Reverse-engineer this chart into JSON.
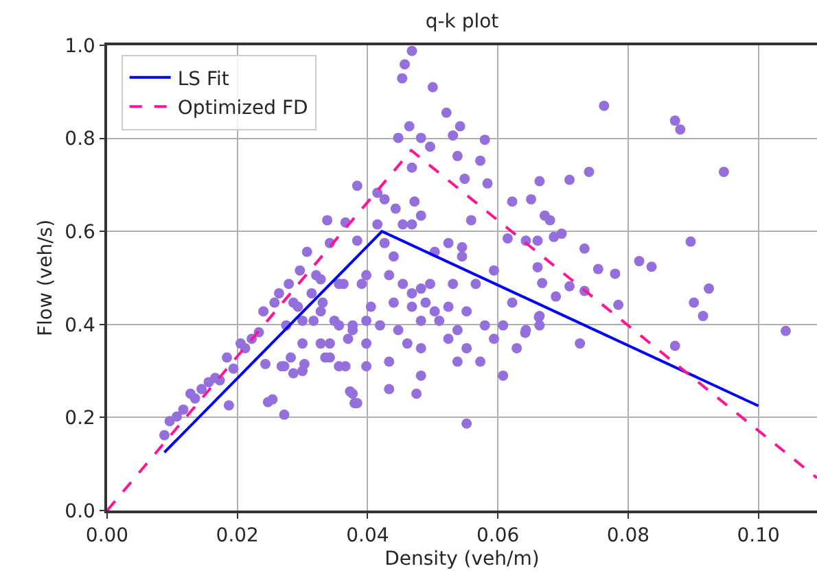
{
  "chart_data": {
    "type": "scatter",
    "title": "q-k plot",
    "xlabel": "Density (veh/m)",
    "ylabel": "Flow (veh/s)",
    "xlim": [
      0,
      0.109
    ],
    "ylim": [
      0,
      1
    ],
    "xticks": [
      {
        "value": 0,
        "label": "0.00"
      },
      {
        "value": 0.02,
        "label": "0.02"
      },
      {
        "value": 0.04,
        "label": "0.04"
      },
      {
        "value": 0.06,
        "label": "0.06"
      },
      {
        "value": 0.08,
        "label": "0.08"
      },
      {
        "value": 0.1,
        "label": "0.10"
      }
    ],
    "yticks": [
      {
        "value": 0,
        "label": "0.0"
      },
      {
        "value": 0.2,
        "label": "0.2"
      },
      {
        "value": 0.4,
        "label": "0.4"
      },
      {
        "value": 0.6,
        "label": "0.6"
      },
      {
        "value": 0.8,
        "label": "0.8"
      },
      {
        "value": 1,
        "label": "1.0"
      }
    ],
    "grid": true,
    "legend": "top left",
    "series": [
      {
        "marker": "circle",
        "color": "#9370db",
        "x": [
          0.0088,
          0.0096,
          0.0107,
          0.0117,
          0.0128,
          0.0135,
          0.0145,
          0.0156,
          0.0166,
          0.0173,
          0.0184,
          0.0187,
          0.0194,
          0.0205,
          0.0212,
          0.0222,
          0.0233,
          0.024,
          0.0243,
          0.0247,
          0.0254,
          0.0257,
          0.0264,
          0.0268,
          0.0272,
          0.0275,
          0.0279,
          0.0282,
          0.0286,
          0.0293,
          0.0296,
          0.03,
          0.0303,
          0.0307,
          0.0314,
          0.0317,
          0.0321,
          0.0328,
          0.0331,
          0.0338,
          0.0342,
          0.0349,
          0.0356,
          0.0366,
          0.0366,
          0.0373,
          0.0377,
          0.038,
          0.0384,
          0.0384,
          0.0391,
          0.0398,
          0.0468,
          0.0457,
          0.0453,
          0.05,
          0.0521,
          0.0542,
          0.0464,
          0.0447,
          0.0482,
          0.0496,
          0.0531,
          0.058,
          0.0538,
          0.0573,
          0.0468,
          0.0549,
          0.0584,
          0.0664,
          0.0415,
          0.0426,
          0.0443,
          0.0472,
          0.0482,
          0.0415,
          0.0454,
          0.0468,
          0.0559,
          0.0524,
          0.0545,
          0.0622,
          0.0651,
          0.0672,
          0.0615,
          0.0643,
          0.0661,
          0.0342,
          0.0426,
          0.044,
          0.0503,
          0.0545,
          0.0594,
          0.0328,
          0.0363,
          0.0398,
          0.0433,
          0.0454,
          0.0468,
          0.0482,
          0.0496,
          0.0531,
          0.0566,
          0.0405,
          0.044,
          0.0468,
          0.0489,
          0.0503,
          0.0524,
          0.0552,
          0.0622,
          0.0664,
          0.0286,
          0.03,
          0.0328,
          0.0356,
          0.0377,
          0.0419,
          0.0447,
          0.0482,
          0.051,
          0.0538,
          0.058,
          0.0608,
          0.0643,
          0.0342,
          0.037,
          0.0398,
          0.0461,
          0.0482,
          0.0524,
          0.0552,
          0.0594,
          0.0629,
          0.0272,
          0.03,
          0.0335,
          0.0356,
          0.0398,
          0.0433,
          0.0482,
          0.0538,
          0.0573,
          0.0608,
          0.0377,
          0.0384,
          0.0433,
          0.0552,
          0.0475,
          0.0763,
          0.0872,
          0.088,
          0.0947,
          0.071,
          0.074,
          0.068,
          0.0686,
          0.0698,
          0.0733,
          0.0896,
          0.0661,
          0.0668,
          0.0689,
          0.071,
          0.0733,
          0.0754,
          0.078,
          0.0817,
          0.0836,
          0.0785,
          0.0901,
          0.0924,
          0.0915,
          0.0642,
          0.0663,
          0.0664,
          0.0726,
          0.0872,
          0.1042
        ],
        "values": [
          0.162,
          0.192,
          0.202,
          0.217,
          0.251,
          0.241,
          0.261,
          0.276,
          0.285,
          0.28,
          0.329,
          0.226,
          0.305,
          0.359,
          0.349,
          0.369,
          0.383,
          0.428,
          0.315,
          0.233,
          0.239,
          0.447,
          0.467,
          0.31,
          0.206,
          0.398,
          0.487,
          0.329,
          0.295,
          0.438,
          0.516,
          0.359,
          0.315,
          0.556,
          0.467,
          0.408,
          0.506,
          0.359,
          0.447,
          0.624,
          0.329,
          0.408,
          0.487,
          0.619,
          0.31,
          0.256,
          0.388,
          0.231,
          0.698,
          0.58,
          0.487,
          0.408,
          0.988,
          0.959,
          0.929,
          0.91,
          0.855,
          0.826,
          0.826,
          0.801,
          0.801,
          0.782,
          0.806,
          0.797,
          0.762,
          0.752,
          0.737,
          0.713,
          0.703,
          0.708,
          0.683,
          0.669,
          0.649,
          0.664,
          0.634,
          0.615,
          0.615,
          0.615,
          0.624,
          0.575,
          0.566,
          0.664,
          0.669,
          0.634,
          0.585,
          0.58,
          0.58,
          0.575,
          0.575,
          0.546,
          0.556,
          0.546,
          0.516,
          0.497,
          0.487,
          0.506,
          0.506,
          0.487,
          0.467,
          0.477,
          0.487,
          0.487,
          0.487,
          0.438,
          0.447,
          0.438,
          0.447,
          0.428,
          0.438,
          0.428,
          0.447,
          0.418,
          0.447,
          0.408,
          0.428,
          0.398,
          0.398,
          0.398,
          0.388,
          0.408,
          0.408,
          0.388,
          0.398,
          0.398,
          0.388,
          0.359,
          0.369,
          0.359,
          0.359,
          0.349,
          0.369,
          0.349,
          0.369,
          0.349,
          0.31,
          0.3,
          0.329,
          0.31,
          0.31,
          0.32,
          0.29,
          0.32,
          0.32,
          0.29,
          0.251,
          0.231,
          0.261,
          0.187,
          0.251,
          0.87,
          0.838,
          0.819,
          0.728,
          0.711,
          0.728,
          0.624,
          0.588,
          0.595,
          0.563,
          0.578,
          0.523,
          0.489,
          0.46,
          0.482,
          0.472,
          0.519,
          0.509,
          0.536,
          0.524,
          0.442,
          0.447,
          0.477,
          0.418,
          0.382,
          0.416,
          0.398,
          0.359,
          0.354,
          0.386
        ]
      },
      {
        "type": "line",
        "marker": "none",
        "name": "LS Fit",
        "color": "#0000ff",
        "line_style": "solid",
        "x": [
          0.0088,
          0.0422,
          0.1
        ],
        "values": [
          0.125,
          0.6,
          0.225
        ]
      },
      {
        "type": "line",
        "marker": "none",
        "name": "Optimized FD",
        "color": "#ff1493",
        "line_style": "dashed",
        "x": [
          0,
          0.0467,
          0.109
        ],
        "values": [
          0,
          0.774,
          0.07
        ]
      }
    ]
  }
}
